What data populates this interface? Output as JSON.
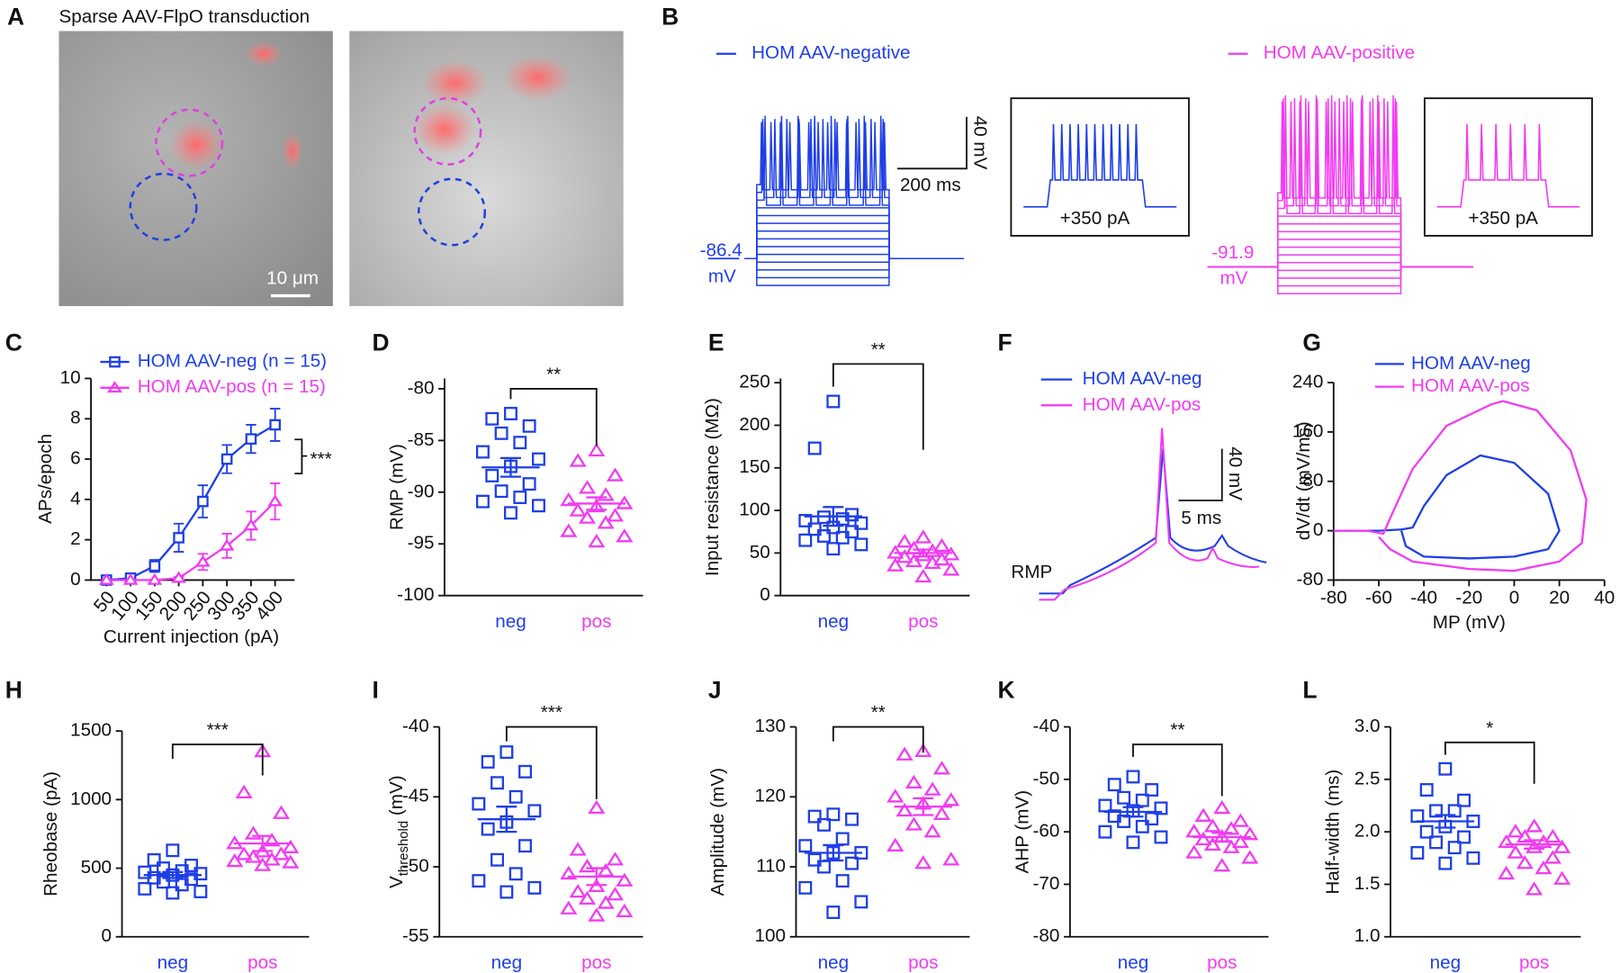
{
  "chart_data": [
    {
      "label": "A",
      "type": "image",
      "title": "Sparse AAV-FlpO transduction",
      "scale_bar": "10 μm"
    },
    {
      "label": "B",
      "type": "traces",
      "series": [
        {
          "name": "HOM AAV-negative",
          "color": "#1f3fe6",
          "rmp": -86.4,
          "rmp_unit": "mV",
          "step": "+350 pA"
        },
        {
          "name": "HOM AAV-positive",
          "color": "#f03cf0",
          "rmp": -91.9,
          "rmp_unit": "mV",
          "step": "+350 pA"
        }
      ],
      "scale_y": "40 mV",
      "scale_x": "200 ms"
    },
    {
      "label": "C",
      "type": "line",
      "categories": [
        50,
        100,
        150,
        200,
        250,
        300,
        350,
        400
      ],
      "series": [
        {
          "name": "HOM AAV-neg (n = 15)",
          "color": "#1f3fe6",
          "marker": "square",
          "values": [
            0,
            0.1,
            0.7,
            2.1,
            3.9,
            6.0,
            7.0,
            7.7
          ],
          "errors": [
            0,
            0.1,
            0.3,
            0.7,
            0.8,
            0.7,
            0.7,
            0.8
          ]
        },
        {
          "name": "HOM AAV-pos (n = 15)",
          "color": "#f03cf0",
          "marker": "triangle",
          "values": [
            0,
            0,
            0,
            0.1,
            0.9,
            1.7,
            2.7,
            3.9
          ],
          "errors": [
            0,
            0,
            0,
            0.05,
            0.4,
            0.6,
            0.7,
            0.9
          ]
        }
      ],
      "ylim": [
        0,
        10
      ],
      "yticks": [
        0,
        2,
        4,
        6,
        8,
        10
      ],
      "xlabel": "Current injection (pA)",
      "ylabel": "APs/epoch",
      "significance": "***"
    },
    {
      "label": "D",
      "type": "strip",
      "ylabel": "RMP (mV)",
      "categories": [
        "neg",
        "pos"
      ],
      "series": [
        {
          "color": "#1f3fe6",
          "marker": "square",
          "values": [
            -82.4,
            -82.9,
            -83.6,
            -84.3,
            -85.2,
            -86.1,
            -86.8,
            -87.5,
            -88.4,
            -89.2,
            -89.9,
            -90.5,
            -90.9,
            -91.3,
            -92.0
          ],
          "mean": -87.6,
          "sem": 0.9
        },
        {
          "color": "#f03cf0",
          "marker": "triangle",
          "values": [
            -86.0,
            -87.0,
            -88.4,
            -89.6,
            -90.3,
            -90.8,
            -91.1,
            -91.4,
            -91.8,
            -92.3,
            -92.5,
            -93.0,
            -93.8,
            -94.3,
            -94.8
          ],
          "mean": -91.1,
          "sem": 0.6
        }
      ],
      "ylim": [
        -100,
        -79
      ],
      "yticks": [
        -100,
        -95,
        -90,
        -85,
        -80
      ],
      "significance": "**"
    },
    {
      "label": "E",
      "type": "strip",
      "ylabel": "Input resistance (MΩ)",
      "categories": [
        "neg",
        "pos"
      ],
      "series": [
        {
          "color": "#1f3fe6",
          "marker": "square",
          "values": [
            228,
            173,
            95,
            92,
            90,
            88,
            85,
            80,
            78,
            75,
            70,
            68,
            65,
            60,
            55
          ],
          "mean": 93,
          "sem": 11
        },
        {
          "color": "#f03cf0",
          "marker": "triangle",
          "values": [
            68,
            63,
            58,
            55,
            52,
            50,
            48,
            47,
            45,
            42,
            40,
            38,
            35,
            30,
            22
          ],
          "mean": 50,
          "sem": 4
        }
      ],
      "ylim": [
        0,
        255
      ],
      "yticks": [
        0,
        50,
        100,
        150,
        200,
        250
      ],
      "significance": "**"
    },
    {
      "label": "F",
      "type": "traces",
      "series": [
        {
          "name": "HOM AAV-neg",
          "color": "#1f3fe6"
        },
        {
          "name": "HOM AAV-pos",
          "color": "#f03cf0"
        }
      ],
      "scale_y": "40 mV",
      "scale_x": "5 ms",
      "baseline": "RMP"
    },
    {
      "label": "G",
      "type": "phase",
      "xlabel": "MP (mV)",
      "ylabel": "dV/dt (mV/ms)",
      "xlim": [
        -80,
        40
      ],
      "xticks": [
        -80,
        -60,
        -40,
        -20,
        0,
        20,
        40
      ],
      "ylim": [
        -80,
        240
      ],
      "yticks": [
        -80,
        0,
        80,
        160,
        240
      ],
      "series": [
        {
          "name": "HOM AAV-neg",
          "color": "#1f3fe6",
          "x": [
            -80,
            -60,
            -50,
            -45,
            -40,
            -30,
            -15,
            0,
            15,
            20,
            15,
            0,
            -20,
            -40,
            -48,
            -50
          ],
          "values": [
            0,
            0,
            2,
            5,
            40,
            90,
            122,
            110,
            60,
            0,
            -30,
            -42,
            -45,
            -42,
            -25,
            0
          ]
        },
        {
          "name": "HOM AAV-pos",
          "color": "#f03cf0",
          "x": [
            -80,
            -65,
            -58,
            -55,
            -45,
            -30,
            -10,
            -5,
            10,
            25,
            32,
            30,
            20,
            0,
            -20,
            -45,
            -55,
            -60
          ],
          "values": [
            0,
            0,
            -5,
            20,
            100,
            170,
            205,
            210,
            195,
            130,
            50,
            -20,
            -50,
            -65,
            -62,
            -50,
            -30,
            -10
          ]
        }
      ]
    },
    {
      "label": "H",
      "type": "strip",
      "ylabel": "Rheobase (pA)",
      "categories": [
        "neg",
        "pos"
      ],
      "series": [
        {
          "color": "#1f3fe6",
          "marker": "square",
          "values": [
            630,
            560,
            520,
            500,
            480,
            470,
            460,
            450,
            430,
            420,
            400,
            380,
            350,
            330,
            320
          ],
          "mean": 450,
          "sem": 22
        },
        {
          "color": "#f03cf0",
          "marker": "triangle",
          "values": [
            1350,
            1050,
            900,
            750,
            700,
            680,
            650,
            620,
            600,
            600,
            580,
            560,
            550,
            540,
            520
          ],
          "mean": 680,
          "sem": 55
        }
      ],
      "ylim": [
        0,
        1500
      ],
      "yticks": [
        0,
        500,
        1000,
        1500
      ],
      "significance": "***"
    },
    {
      "label": "I",
      "type": "strip",
      "ylabel": {
        "text": "V",
        "subscript": "threshold",
        "unit": " (mV)"
      },
      "categories": [
        "neg",
        "pos"
      ],
      "series": [
        {
          "color": "#1f3fe6",
          "marker": "square",
          "values": [
            -41.8,
            -42.5,
            -43.2,
            -44.0,
            -45.0,
            -45.5,
            -46.0,
            -46.8,
            -47.3,
            -48.5,
            -49.5,
            -50.5,
            -51.0,
            -51.5,
            -51.8
          ],
          "mean": -46.6,
          "sem": 0.9
        },
        {
          "color": "#f03cf0",
          "marker": "triangle",
          "values": [
            -45.8,
            -48.8,
            -49.5,
            -50.0,
            -50.3,
            -50.5,
            -51.0,
            -51.4,
            -51.8,
            -52.0,
            -52.3,
            -52.6,
            -53.0,
            -53.2,
            -53.5
          ],
          "mean": -50.7,
          "sem": 0.6
        }
      ],
      "ylim": [
        -55,
        -40
      ],
      "yticks": [
        -55,
        -50,
        -45,
        -40
      ],
      "significance": "***"
    },
    {
      "label": "J",
      "type": "strip",
      "ylabel": "Amplitude (mV)",
      "categories": [
        "neg",
        "pos"
      ],
      "series": [
        {
          "color": "#1f3fe6",
          "marker": "square",
          "values": [
            117.5,
            117.2,
            116.8,
            116,
            114,
            113,
            112,
            112,
            111,
            110.5,
            110,
            108,
            107,
            105,
            103.5
          ],
          "mean": 112,
          "sem": 1.1
        },
        {
          "color": "#f03cf0",
          "marker": "triangle",
          "values": [
            126.5,
            126,
            124,
            122,
            121,
            120,
            119.5,
            119,
            118,
            117.5,
            116,
            115,
            113,
            111,
            110.5
          ],
          "mean": 118.6,
          "sem": 1.2
        }
      ],
      "ylim": [
        100,
        130
      ],
      "yticks": [
        100,
        110,
        120,
        130
      ],
      "significance": "**"
    },
    {
      "label": "K",
      "type": "strip",
      "ylabel": "AHP (mV)",
      "categories": [
        "neg",
        "pos"
      ],
      "series": [
        {
          "color": "#1f3fe6",
          "marker": "square",
          "values": [
            -49.5,
            -51,
            -52,
            -53.5,
            -54,
            -55,
            -55.5,
            -56,
            -57,
            -57.5,
            -58,
            -59,
            -60,
            -61,
            -62
          ],
          "mean": -56.2,
          "sem": 0.9
        },
        {
          "color": "#f03cf0",
          "marker": "triangle",
          "values": [
            -55.5,
            -57,
            -58,
            -59,
            -59.5,
            -60,
            -60.5,
            -61,
            -61.5,
            -62,
            -62.5,
            -63,
            -64,
            -65,
            -66.5
          ],
          "mean": -61,
          "sem": 0.8
        }
      ],
      "ylim": [
        -80,
        -40
      ],
      "yticks": [
        -80,
        -70,
        -60,
        -50,
        -40
      ],
      "significance": "**"
    },
    {
      "label": "L",
      "type": "strip",
      "ylabel": "Half-width (ms)",
      "categories": [
        "neg",
        "pos"
      ],
      "series": [
        {
          "color": "#1f3fe6",
          "marker": "square",
          "values": [
            2.6,
            2.4,
            2.3,
            2.2,
            2.2,
            2.15,
            2.1,
            2.05,
            2.0,
            1.95,
            1.9,
            1.85,
            1.8,
            1.75,
            1.7
          ],
          "mean": 2.1,
          "sem": 0.06
        },
        {
          "color": "#f03cf0",
          "marker": "triangle",
          "values": [
            2.05,
            2.0,
            1.95,
            1.95,
            1.9,
            1.9,
            1.85,
            1.85,
            1.8,
            1.75,
            1.7,
            1.65,
            1.6,
            1.55,
            1.45
          ],
          "mean": 1.88,
          "sem": 0.04
        }
      ],
      "ylim": [
        1,
        3
      ],
      "yticks": [
        {
          "value": 1,
          "label": "1.0"
        },
        1.5,
        {
          "value": 2,
          "label": "2.0"
        },
        2.5,
        {
          "value": 3,
          "label": "3.0"
        }
      ],
      "significance": "*"
    }
  ]
}
